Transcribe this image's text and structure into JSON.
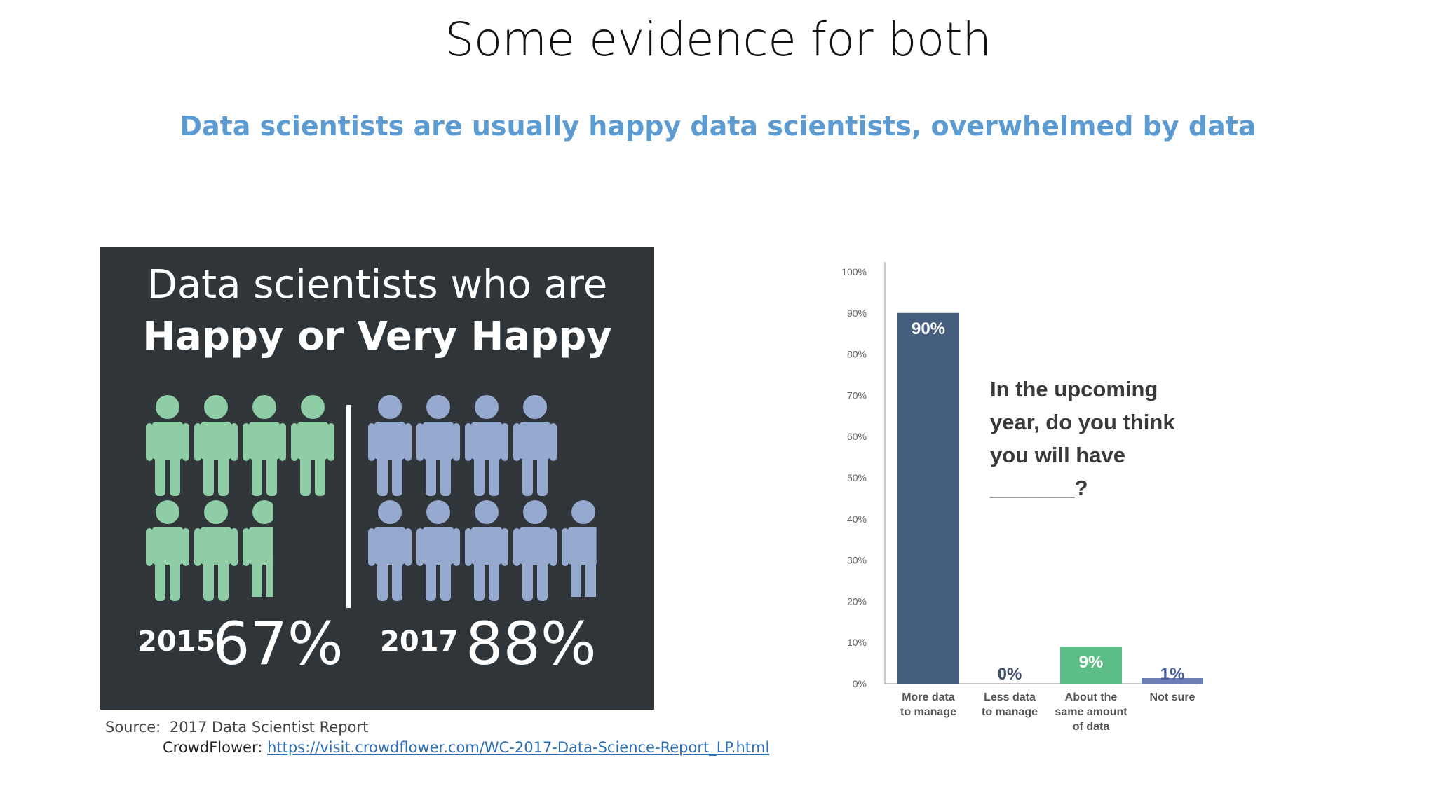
{
  "slide": {
    "title": "Some evidence for both",
    "subtitle": "Data scientists are usually happy data scientists, overwhelmed by data"
  },
  "infographic": {
    "line1": "Data scientists who are",
    "line2": "Happy or  Very Happy",
    "year_2015": "2015",
    "pct_2015": "67%",
    "year_2017": "2017",
    "pct_2017": "88%",
    "happy_share_2015": 0.67,
    "happy_share_2017": 0.88,
    "colors": {
      "green": "#8ecda6",
      "blue": "#96a9cf",
      "background": "#2f3538"
    }
  },
  "source": {
    "label": "Source:",
    "report": "2017 Data Scientist Report",
    "publisher": "CrowdFlower:",
    "url": "https://visit.crowdflower.com/WC-2017-Data-Science-Report_LP.html"
  },
  "chart_data": {
    "type": "bar",
    "question_lines": [
      "In the upcoming",
      "year, do you think",
      "you will have",
      "_______?"
    ],
    "categories": [
      [
        "More data",
        "to manage"
      ],
      [
        "Less data",
        "to manage"
      ],
      [
        "About the",
        "same amount",
        "of data"
      ],
      [
        "Not sure"
      ]
    ],
    "values": [
      90,
      0,
      9,
      1
    ],
    "data_labels": [
      "90%",
      "0%",
      "9%",
      "1%"
    ],
    "bar_colors": [
      "#465e7e",
      "#465e7e",
      "#5dbd86",
      "#6b7fb5"
    ],
    "ylim": [
      0,
      100
    ],
    "yticks": [
      "0%",
      "10%",
      "20%",
      "30%",
      "40%",
      "50%",
      "60%",
      "70%",
      "80%",
      "90%",
      "100%"
    ],
    "grid": false
  }
}
